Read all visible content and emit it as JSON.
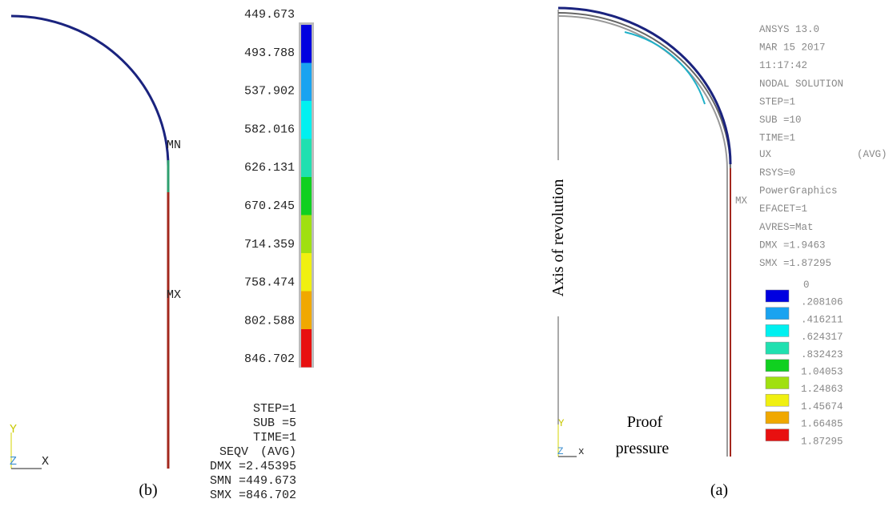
{
  "panel_b": {
    "legend": [
      "449.673",
      "493.788",
      "537.902",
      "582.016",
      "626.131",
      "670.245",
      "714.359",
      "758.474",
      "802.588",
      "846.702"
    ],
    "info": [
      "STEP=1",
      "SUB =5",
      "TIME=1"
    ],
    "result": "SEQV",
    "avg": "(AVG)",
    "stats": [
      "DMX =2.45395",
      "SMN =449.673",
      "SMX =846.702"
    ],
    "min_label": "MN",
    "max_label": "MX",
    "triad": {
      "y": "Y",
      "z": "Z",
      "x": "X"
    },
    "caption": "(b)"
  },
  "panel_a": {
    "header": [
      "ANSYS 13.0",
      "MAR 15 2017",
      "11:17:42",
      "NODAL SOLUTION",
      "STEP=1",
      "SUB =10",
      "TIME=1"
    ],
    "result": "UX",
    "avg": "(AVG)",
    "info": [
      "RSYS=0",
      "PowerGraphics",
      "EFACET=1",
      "AVRES=Mat",
      "DMX =1.9463",
      "SMX =1.87295"
    ],
    "legend": [
      "0",
      ".208106",
      ".416211",
      ".624317",
      ".832423",
      "1.04053",
      "1.24863",
      "1.45674",
      "1.66485",
      "1.87295"
    ],
    "axis_label": "Axis of revolution",
    "load_label": [
      "Proof",
      "pressure"
    ],
    "max_label": "MX",
    "triad": {
      "y": "Y",
      "z": "Z",
      "x": "x"
    },
    "caption": "(a)"
  }
}
